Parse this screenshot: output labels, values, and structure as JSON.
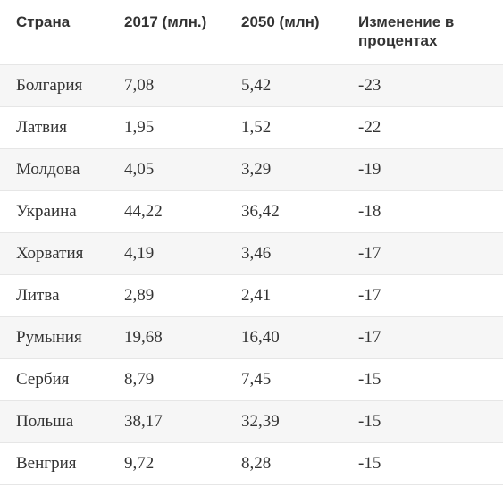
{
  "headers": [
    "Страна",
    "2017 (млн.)",
    "2050 (млн)",
    "Изменение в процентах"
  ],
  "rows": [
    [
      "Болгария",
      "7,08",
      "5,42",
      "-23"
    ],
    [
      "Латвия",
      "1,95",
      "1,52",
      "-22"
    ],
    [
      "Молдова",
      "4,05",
      "3,29",
      "-19"
    ],
    [
      "Украина",
      "44,22",
      "36,42",
      "-18"
    ],
    [
      "Хорватия",
      "4,19",
      "3,46",
      "-17"
    ],
    [
      "Литва",
      "2,89",
      "2,41",
      "-17"
    ],
    [
      "Румыния",
      "19,68",
      "16,40",
      "-17"
    ],
    [
      "Сербия",
      "8,79",
      "7,45",
      "-15"
    ],
    [
      "Польша",
      "38,17",
      "32,39",
      "-15"
    ],
    [
      "Венгрия",
      "9,72",
      "8,28",
      "-15"
    ]
  ]
}
